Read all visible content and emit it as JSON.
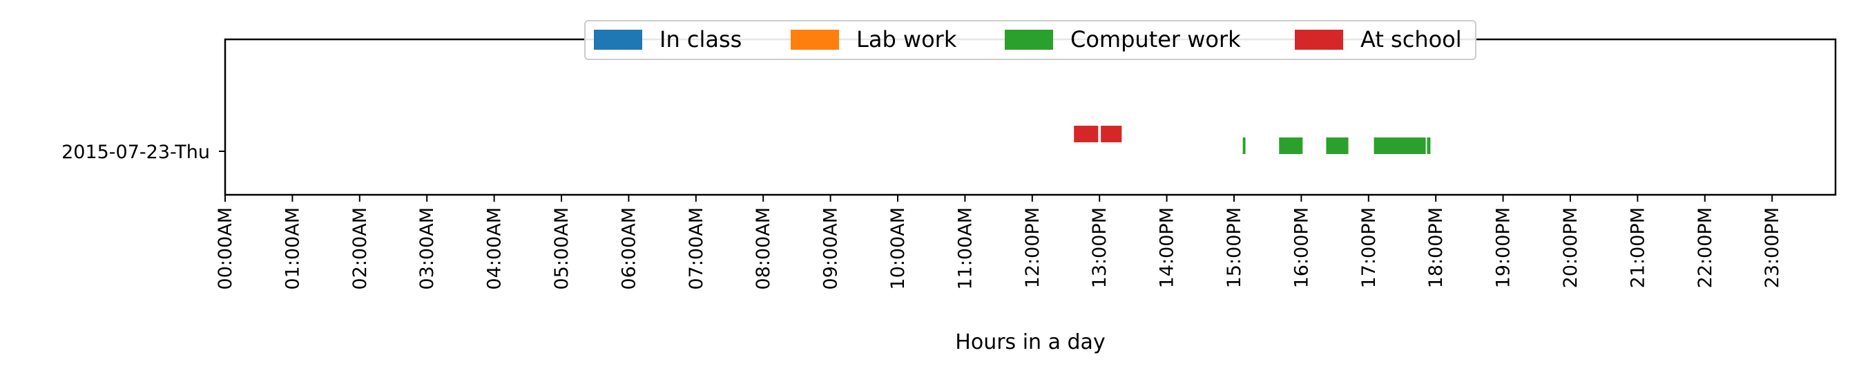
{
  "chart_data": {
    "type": "bar",
    "orientation": "horizontal-timeline",
    "title": "",
    "xlabel": "Hours in a day",
    "ylabel": "",
    "xlim": [
      0,
      24
    ],
    "x_tick_values": [
      0,
      1,
      2,
      3,
      4,
      5,
      6,
      7,
      8,
      9,
      10,
      11,
      12,
      13,
      14,
      15,
      16,
      17,
      18,
      19,
      20,
      21,
      22,
      23
    ],
    "x_tick_labels": [
      "00:00AM",
      "01:00AM",
      "02:00AM",
      "03:00AM",
      "04:00AM",
      "05:00AM",
      "06:00AM",
      "07:00AM",
      "08:00AM",
      "09:00AM",
      "10:00AM",
      "11:00AM",
      "12:00PM",
      "13:00PM",
      "14:00PM",
      "15:00PM",
      "16:00PM",
      "17:00PM",
      "18:00PM",
      "19:00PM",
      "20:00PM",
      "21:00PM",
      "22:00PM",
      "23:00PM"
    ],
    "categories": [
      "2015-07-23-Thu"
    ],
    "grid": false,
    "legend_position": "top-center",
    "series": [
      {
        "name": "In class",
        "color": "#1f77b4",
        "intervals": []
      },
      {
        "name": "Lab work",
        "color": "#ff7f0e",
        "intervals": []
      },
      {
        "name": "Computer work",
        "color": "#2ca02c",
        "intervals": [
          [
            15.13,
            15.17
          ],
          [
            15.67,
            16.02
          ],
          [
            16.37,
            16.7
          ],
          [
            17.08,
            17.85
          ],
          [
            17.87,
            17.92
          ]
        ]
      },
      {
        "name": "At school",
        "color": "#d62728",
        "intervals": [
          [
            12.62,
            12.98
          ],
          [
            13.02,
            13.33
          ]
        ]
      }
    ]
  }
}
